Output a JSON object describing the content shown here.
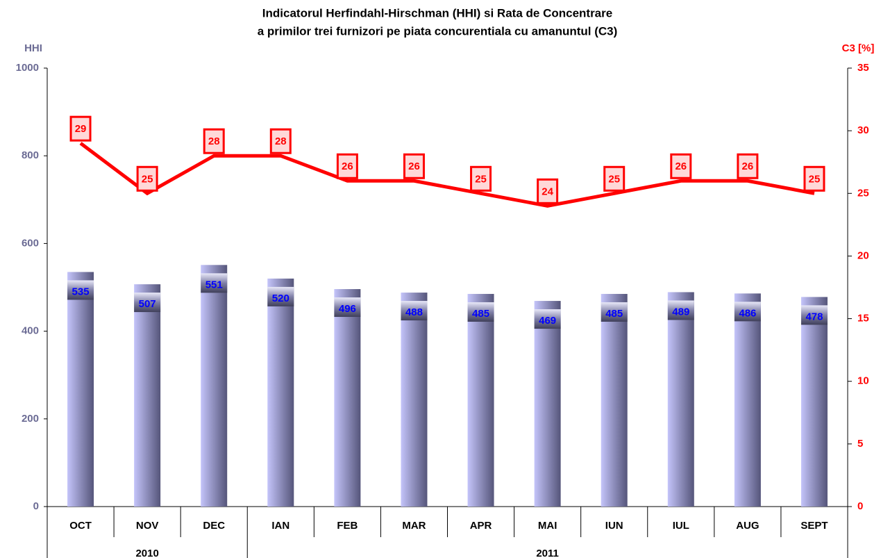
{
  "chart_data": {
    "type": "bar-line",
    "title": [
      "Indicatorul Herfindahl-Hirschman (HHI) si Rata de Concentrare",
      "a primilor trei furnizori pe piata concurentiala cu amanuntul (C3)"
    ],
    "y_label": "HHI",
    "y2_label": "C3 [%]",
    "categories": [
      "OCT",
      "NOV",
      "DEC",
      "IAN",
      "FEB",
      "MAR",
      "APR",
      "MAI",
      "IUN",
      "IUL",
      "AUG",
      "SEPT"
    ],
    "years": [
      "2010",
      "2010",
      "2010",
      "2011",
      "2011",
      "2011",
      "2011",
      "2011",
      "2011",
      "2011",
      "2011",
      "2011"
    ],
    "series": [
      {
        "name": "HHI",
        "type": "bar",
        "color": "#c4c4fa",
        "values": [
          535,
          507,
          551,
          520,
          496,
          488,
          485,
          469,
          485,
          489,
          486,
          478
        ]
      },
      {
        "name": "C3",
        "type": "line",
        "axis": "y2",
        "color": "#ff0000",
        "values": [
          29,
          25,
          28,
          28,
          26,
          26,
          25,
          24,
          25,
          26,
          26,
          25
        ]
      }
    ],
    "ylim": [
      0,
      1000
    ],
    "yticks": [
      0,
      200,
      400,
      600,
      800,
      1000
    ],
    "y2lim": [
      0,
      35
    ],
    "y2ticks": [
      0,
      5,
      10,
      15,
      20,
      25,
      30,
      35
    ]
  }
}
